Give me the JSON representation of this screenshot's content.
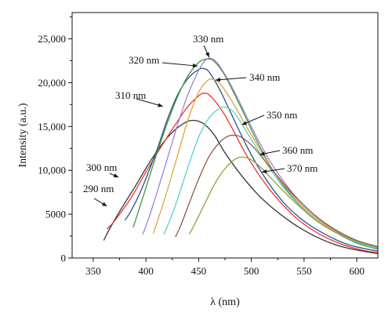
{
  "chart_data": {
    "type": "line",
    "xlabel": "λ (nm)",
    "ylabel": "Intensity (a.u.)",
    "xlim": [
      330,
      620
    ],
    "ylim": [
      0,
      28000
    ],
    "xticks": [
      350,
      400,
      450,
      500,
      550,
      600
    ],
    "yticks": [
      0,
      5000,
      10000,
      15000,
      20000,
      25000
    ],
    "ytick_labels": [
      "0",
      "5000",
      "10,000",
      "15,000",
      "20,000",
      "25,000"
    ],
    "grid": false,
    "series": [
      {
        "name": "290 nm",
        "color": "#333333",
        "x": [
          360,
          365,
          375,
          390,
          405,
          420,
          435,
          445,
          455,
          465,
          475,
          490,
          505,
          520,
          540,
          560,
          580,
          600,
          620
        ],
        "y": [
          2000,
          3200,
          5300,
          8200,
          11200,
          13700,
          15300,
          15700,
          15300,
          14000,
          12000,
          9500,
          7400,
          5700,
          3900,
          2500,
          1500,
          900,
          500
        ]
      },
      {
        "name": "300 nm",
        "color": "#e8382d",
        "x": [
          363,
          370,
          385,
          400,
          415,
          430,
          440,
          450,
          455,
          460,
          470,
          480,
          495,
          510,
          525,
          545,
          565,
          585,
          605,
          620
        ],
        "y": [
          3300,
          4200,
          6700,
          9800,
          12800,
          15600,
          17300,
          18500,
          18800,
          18600,
          17200,
          15200,
          11800,
          9000,
          6700,
          4300,
          2700,
          1600,
          900,
          600
        ]
      },
      {
        "name": "310 nm",
        "color": "#2b4f8f",
        "x": [
          380,
          385,
          395,
          410,
          420,
          430,
          440,
          450,
          455,
          460,
          470,
          480,
          495,
          510,
          530,
          550,
          570,
          590,
          610,
          620
        ],
        "y": [
          4300,
          5200,
          7600,
          12200,
          15700,
          18600,
          20500,
          21500,
          21600,
          21200,
          19200,
          16700,
          12900,
          9700,
          6400,
          4200,
          2700,
          1600,
          1000,
          800
        ]
      },
      {
        "name": "320 nm",
        "color": "#3c9b3c",
        "x": [
          388,
          392,
          400,
          410,
          420,
          430,
          440,
          450,
          458,
          465,
          475,
          490,
          505,
          520,
          540,
          560,
          580,
          600,
          620
        ],
        "y": [
          3500,
          5000,
          8000,
          11800,
          15300,
          18400,
          20800,
          22300,
          22700,
          22400,
          20800,
          17200,
          13400,
          10100,
          6800,
          4500,
          2900,
          1700,
          1000
        ]
      },
      {
        "name": "330 nm",
        "color": "#a081d6",
        "x": [
          397,
          402,
          410,
          420,
          430,
          440,
          450,
          456,
          461,
          468,
          478,
          490,
          505,
          520,
          540,
          560,
          580,
          600,
          620
        ],
        "y": [
          2700,
          4300,
          7300,
          11200,
          15200,
          18700,
          21400,
          22500,
          22800,
          22200,
          20300,
          17500,
          13800,
          10600,
          7300,
          4900,
          3100,
          1900,
          1100
        ]
      },
      {
        "name": "340 nm",
        "color": "#e1a33c",
        "x": [
          407,
          412,
          420,
          430,
          440,
          450,
          458,
          463,
          470,
          480,
          492,
          505,
          520,
          540,
          560,
          580,
          600,
          620
        ],
        "y": [
          2800,
          4600,
          7600,
          11700,
          15800,
          18900,
          20200,
          20400,
          19900,
          18200,
          15700,
          13000,
          10100,
          7000,
          4700,
          3000,
          1900,
          1200
        ]
      },
      {
        "name": "350 nm",
        "color": "#5ccfcf",
        "x": [
          417,
          422,
          430,
          440,
          450,
          460,
          470,
          475,
          482,
          490,
          500,
          515,
          530,
          550,
          570,
          590,
          610,
          620
        ],
        "y": [
          2700,
          4100,
          6700,
          10400,
          13800,
          16000,
          17100,
          17200,
          16800,
          15500,
          13500,
          10700,
          8100,
          5500,
          3600,
          2300,
          1400,
          1100
        ]
      },
      {
        "name": "360 nm",
        "color": "#8b5a4a",
        "x": [
          428,
          433,
          440,
          450,
          460,
          470,
          478,
          484,
          490,
          500,
          510,
          525,
          540,
          560,
          580,
          600,
          620
        ],
        "y": [
          2400,
          3700,
          5900,
          9000,
          11600,
          13200,
          13900,
          14000,
          13800,
          12900,
          11500,
          9300,
          7200,
          4900,
          3200,
          2000,
          1300
        ]
      },
      {
        "name": "370 nm",
        "color": "#9c9a3c",
        "x": [
          441,
          446,
          455,
          465,
          475,
          485,
          492,
          500,
          510,
          525,
          540,
          560,
          580,
          600,
          620
        ],
        "y": [
          2700,
          3800,
          6000,
          8400,
          10200,
          11300,
          11500,
          11200,
          10200,
          8300,
          6500,
          4400,
          2900,
          1900,
          1200
        ]
      }
    ],
    "annotations": [
      {
        "label": "290 nm",
        "series": "290 nm",
        "arrow_x": 363,
        "arrow_y": 5900
      },
      {
        "label": "300 nm",
        "series": "300 nm",
        "arrow_x": 374,
        "arrow_y": 9200
      },
      {
        "label": "310 nm",
        "series": "310 nm",
        "arrow_x": 416,
        "arrow_y": 17300
      },
      {
        "label": "320 nm",
        "series": "320 nm",
        "arrow_x": 449,
        "arrow_y": 21900
      },
      {
        "label": "330 nm",
        "series": "330 nm",
        "arrow_x": 460,
        "arrow_y": 22900
      },
      {
        "label": "340 nm",
        "series": "340 nm",
        "arrow_x": 466,
        "arrow_y": 20300
      },
      {
        "label": "350 nm",
        "series": "350 nm",
        "arrow_x": 491,
        "arrow_y": 15200
      },
      {
        "label": "360 nm",
        "series": "360 nm",
        "arrow_x": 508,
        "arrow_y": 11800
      },
      {
        "label": "370 nm",
        "series": "370 nm",
        "arrow_x": 510,
        "arrow_y": 9800
      }
    ]
  }
}
